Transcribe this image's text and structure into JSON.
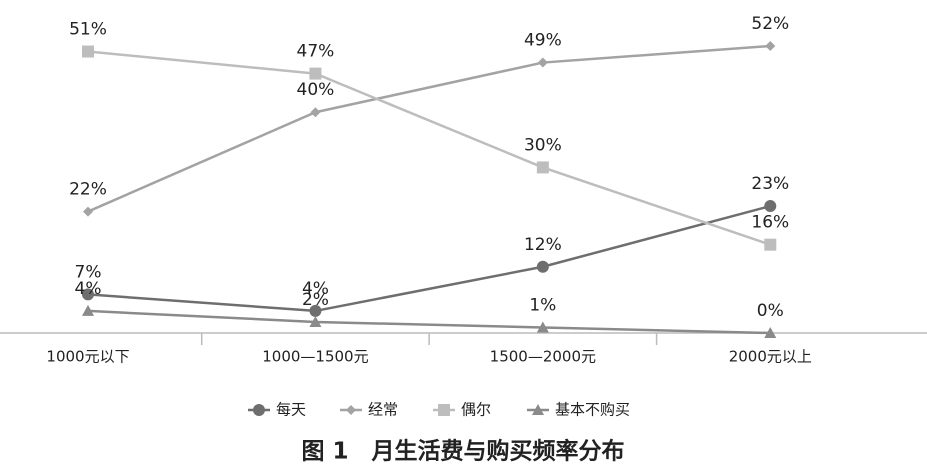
{
  "chart_data": {
    "type": "line",
    "title": "图 1　月生活费与购买频率分布",
    "categories": [
      "1000元以下",
      "1000—1500元",
      "1500—2000元",
      "2000元以上"
    ],
    "series": [
      {
        "name": "每天",
        "color": "#6e6e6e",
        "marker": "circle",
        "values": [
          7,
          4,
          12,
          23
        ],
        "value_labels": [
          "7%",
          "4%",
          "12%",
          "23%"
        ]
      },
      {
        "name": "经常",
        "color": "#a3a3a3",
        "marker": "diamond",
        "values": [
          22,
          40,
          49,
          52
        ],
        "value_labels": [
          "22%",
          "40%",
          "49%",
          "52%"
        ]
      },
      {
        "name": "偶尔",
        "color": "#bdbdbd",
        "marker": "square",
        "values": [
          51,
          47,
          30,
          16
        ],
        "value_labels": [
          "51%",
          "47%",
          "30%",
          "16%"
        ]
      },
      {
        "name": "基本不购买",
        "color": "#8a8a8a",
        "marker": "triangle",
        "values": [
          4,
          2,
          1,
          0
        ],
        "value_labels": [
          "4%",
          "2%",
          "1%",
          "0%"
        ]
      }
    ],
    "legend": "bottom"
  }
}
